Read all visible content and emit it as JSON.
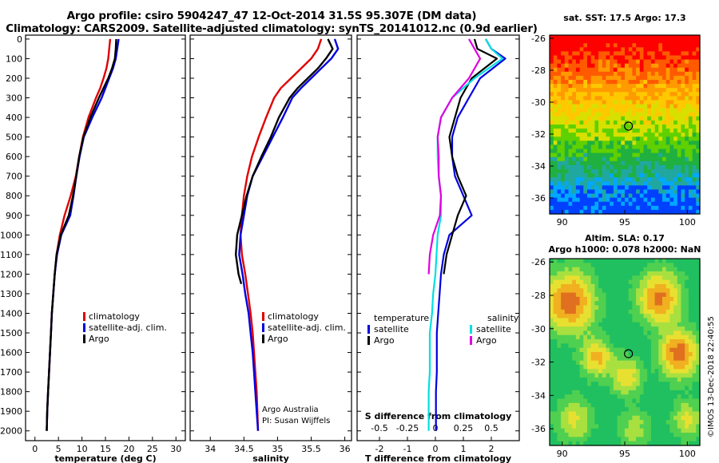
{
  "titles": {
    "line1": "Argo profile: csiro 5904247_47 12-Oct-2014 31.5S 95.307E (DM data)",
    "line2": "Climatology: CARS2009. Satellite-adjusted climatology: synTS_20141012.nc (0.9d earlier)"
  },
  "colors": {
    "climatology": "#e00000",
    "satellite": "#0000e0",
    "argo": "#000000",
    "s_satellite": "#00e0e0",
    "s_argo": "#e000e0"
  },
  "depth_ticks": [
    "0",
    "100",
    "200",
    "300",
    "400",
    "500",
    "600",
    "700",
    "800",
    "900",
    "1000",
    "1100",
    "1200",
    "1300",
    "1400",
    "1500",
    "1600",
    "1700",
    "1800",
    "1900",
    "2000"
  ],
  "credits": {
    "line1": "Argo Australia",
    "line2": "PI: Susan Wijffels"
  },
  "watermark": "©IMOS 13-Dec-2018 22:40:55",
  "chart_data": [
    {
      "type": "line",
      "name": "temperature-profile",
      "xlabel": "temperature (deg C)",
      "ylabel": "",
      "xlim": [
        -2,
        32
      ],
      "ylim": [
        2050,
        -20
      ],
      "xticks": [
        "0",
        "5",
        "10",
        "15",
        "20",
        "25",
        "30"
      ],
      "legend": [
        "climatology",
        "satellite-adj. clim.",
        "Argo"
      ],
      "series": [
        {
          "name": "climatology",
          "depth": [
            0,
            50,
            100,
            150,
            200,
            250,
            300,
            400,
            500,
            600,
            700,
            800,
            900,
            1000,
            1100,
            1200,
            1300,
            1400,
            1500,
            1600,
            1700,
            1800,
            1900,
            2000
          ],
          "values": [
            16,
            15.8,
            15.6,
            15.2,
            14.6,
            13.9,
            13.0,
            11.4,
            10.2,
            9.4,
            8.7,
            7.6,
            6.3,
            5.3,
            4.6,
            4.2,
            3.9,
            3.6,
            3.4,
            3.2,
            3.0,
            2.8,
            2.6,
            2.5
          ]
        },
        {
          "name": "satellite-adj. clim.",
          "depth": [
            0,
            50,
            100,
            150,
            200,
            250,
            300,
            400,
            500,
            600,
            700,
            800,
            900,
            1000,
            1100,
            1200,
            1300,
            1400,
            1500,
            1600,
            1700,
            1800,
            1900,
            2000
          ],
          "values": [
            17.8,
            17.5,
            17.2,
            16.6,
            15.8,
            15.0,
            14.2,
            12.2,
            10.4,
            9.5,
            8.8,
            8.2,
            7.5,
            5.6,
            4.7,
            4.2,
            3.9,
            3.6,
            3.4,
            3.2,
            3.0,
            2.8,
            2.6,
            2.5
          ]
        },
        {
          "name": "Argo",
          "depth": [
            0,
            50,
            100,
            150,
            200,
            250,
            300,
            400,
            500,
            600,
            700,
            800,
            900,
            1000,
            1100,
            1200,
            1300,
            1400,
            1500,
            1600,
            1700,
            1800,
            1900,
            2000
          ],
          "values": [
            17.3,
            17.2,
            17.0,
            16.4,
            15.6,
            14.6,
            13.6,
            11.8,
            10.3,
            9.4,
            8.8,
            8.1,
            7.2,
            5.5,
            4.6,
            4.2,
            3.9,
            3.6,
            3.4,
            3.2,
            3.0,
            2.8,
            2.6,
            2.5
          ]
        }
      ]
    },
    {
      "type": "line",
      "name": "salinity-profile",
      "xlabel": "salinity",
      "ylabel": "",
      "xlim": [
        33.7,
        36.1
      ],
      "ylim": [
        2050,
        -20
      ],
      "xticks": [
        "34",
        "34.5",
        "35",
        "35.5",
        "36"
      ],
      "legend": [
        "climatology",
        "satellite-adj. clim.",
        "Argo"
      ],
      "series": [
        {
          "name": "climatology",
          "depth": [
            0,
            50,
            100,
            150,
            200,
            250,
            300,
            400,
            500,
            600,
            700,
            800,
            900,
            1000,
            1100,
            1200,
            1300,
            1400,
            1500,
            1600,
            1700,
            1800,
            1900,
            2000
          ],
          "values": [
            35.65,
            35.6,
            35.5,
            35.35,
            35.2,
            35.05,
            34.95,
            34.83,
            34.72,
            34.62,
            34.55,
            34.5,
            34.47,
            34.45,
            34.47,
            34.52,
            34.56,
            34.6,
            34.63,
            34.65,
            34.67,
            34.69,
            34.7,
            34.71
          ]
        },
        {
          "name": "satellite-adj. clim.",
          "depth": [
            0,
            50,
            100,
            150,
            200,
            250,
            300,
            400,
            500,
            600,
            700,
            800,
            900,
            1000,
            1100,
            1200,
            1300,
            1400,
            1500,
            1600,
            1700,
            1800,
            1900,
            2000
          ],
          "values": [
            35.85,
            35.9,
            35.8,
            35.65,
            35.5,
            35.35,
            35.22,
            35.08,
            34.93,
            34.78,
            34.63,
            34.55,
            34.5,
            34.45,
            34.43,
            34.48,
            34.52,
            34.57,
            34.6,
            34.63,
            34.65,
            34.67,
            34.69,
            34.71
          ]
        },
        {
          "name": "Argo",
          "depth": [
            0,
            50,
            100,
            150,
            200,
            250,
            300,
            400,
            500,
            600,
            700,
            800,
            900,
            1000,
            1100,
            1200,
            1250
          ],
          "values": [
            35.75,
            35.82,
            35.72,
            35.6,
            35.45,
            35.3,
            35.18,
            35.02,
            34.9,
            34.76,
            34.63,
            34.54,
            34.47,
            34.4,
            34.38,
            34.42,
            34.46
          ]
        }
      ]
    },
    {
      "type": "line",
      "name": "difference-profile",
      "xlabel": "T difference from climatology",
      "xlabel2": "S difference from climatology",
      "xlim": [
        -2.8,
        3.0
      ],
      "ylim": [
        2050,
        -20
      ],
      "xticks": [
        "-2",
        "-1",
        "0",
        "1",
        "2"
      ],
      "xticks2": [
        "-0.5",
        "-0.25",
        "0",
        "0.25",
        "0.5"
      ],
      "legend_left_title": "temperature",
      "legend_right_title": "salinity",
      "legend": [
        "satellite",
        "Argo",
        "satellite",
        "Argo"
      ],
      "series": [
        {
          "name": "T satellite",
          "depth": [
            0,
            50,
            100,
            200,
            300,
            400,
            500,
            600,
            700,
            800,
            900,
            1000,
            1100,
            1200,
            1300,
            1400,
            1500,
            1600,
            1700,
            1800,
            1900,
            2000
          ],
          "values": [
            1.8,
            2.0,
            2.5,
            1.6,
            1.2,
            0.8,
            0.6,
            0.6,
            0.7,
            1.0,
            1.3,
            0.5,
            0.3,
            0.2,
            0.15,
            0.1,
            0.05,
            0.05,
            0.05,
            0.02,
            0.02,
            0.02
          ]
        },
        {
          "name": "T Argo",
          "depth": [
            0,
            50,
            100,
            200,
            300,
            400,
            500,
            600,
            700,
            800,
            900,
            1000,
            1100,
            1200
          ],
          "values": [
            1.4,
            1.5,
            2.2,
            1.3,
            0.9,
            0.7,
            0.5,
            0.6,
            0.8,
            1.1,
            0.8,
            0.6,
            0.4,
            0.3
          ]
        },
        {
          "name": "S satellite",
          "depth": [
            0,
            50,
            100,
            200,
            300,
            400,
            500,
            600,
            700,
            800,
            900,
            1000,
            1100,
            1200,
            1300,
            1400,
            1500,
            1600,
            1700,
            1800,
            1900,
            2000
          ],
          "values": [
            0.45,
            0.5,
            0.6,
            0.35,
            0.15,
            0.05,
            0.02,
            0.02,
            0.03,
            0.05,
            0.05,
            0.02,
            0.01,
            0.0,
            -0.02,
            -0.03,
            -0.05,
            -0.05,
            -0.05,
            -0.06,
            -0.06,
            -0.06
          ]
        },
        {
          "name": "S Argo",
          "depth": [
            0,
            50,
            100,
            200,
            300,
            400,
            500,
            600,
            700,
            800,
            900,
            1000,
            1100,
            1200
          ],
          "values": [
            0.3,
            0.35,
            0.4,
            0.3,
            0.15,
            0.05,
            0.02,
            0.03,
            0.03,
            0.05,
            0.04,
            -0.02,
            -0.05,
            -0.06
          ]
        }
      ]
    },
    {
      "type": "heatmap",
      "name": "sst-map",
      "title": "sat. SST: 17.5 Argo: 17.3",
      "xlim": [
        89,
        101
      ],
      "ylim": [
        -37,
        -25.8
      ],
      "xticks": [
        "90",
        "95",
        "100"
      ],
      "yticks": [
        "-26",
        "-28",
        "-30",
        "-32",
        "-34",
        "-36"
      ],
      "marker": {
        "lon": 95.3,
        "lat": -31.5
      }
    },
    {
      "type": "heatmap",
      "name": "sla-map",
      "title": "Altim. SLA: 0.17",
      "subtitle": "Argo h1000: 0.078 h2000: NaN",
      "xlim": [
        89,
        101
      ],
      "ylim": [
        -37,
        -25.8
      ],
      "xticks": [
        "90",
        "95",
        "100"
      ],
      "yticks": [
        "-26",
        "-28",
        "-30",
        "-32",
        "-34",
        "-36"
      ],
      "marker": {
        "lon": 95.3,
        "lat": -31.5
      }
    }
  ]
}
